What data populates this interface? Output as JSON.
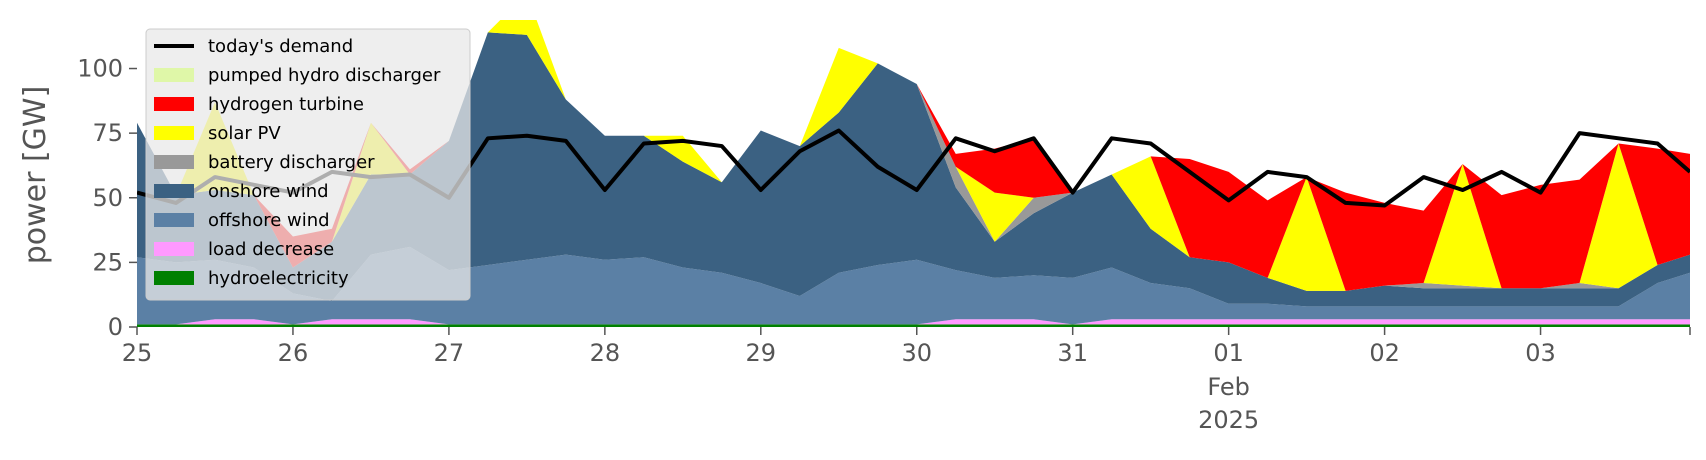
{
  "chart_data": {
    "type": "area",
    "title": "",
    "xlabel": "",
    "ylabel": "power [GW]",
    "ylim": [
      0,
      118
    ],
    "yticks": [
      0,
      25,
      50,
      75,
      100
    ],
    "xlim": [
      "2025-01-25T00:00",
      "2025-02-03T23:00"
    ],
    "x_ticks": [
      {
        "date": "2025-01-25",
        "label": "25"
      },
      {
        "date": "2025-01-26",
        "label": "26"
      },
      {
        "date": "2025-01-27",
        "label": "27"
      },
      {
        "date": "2025-01-28",
        "label": "28"
      },
      {
        "date": "2025-01-29",
        "label": "29"
      },
      {
        "date": "2025-01-30",
        "label": "30"
      },
      {
        "date": "2025-01-31",
        "label": "31"
      },
      {
        "date": "2025-02-01",
        "label": "01",
        "sublabels": [
          "Feb",
          "2025"
        ]
      },
      {
        "date": "2025-02-02",
        "label": "02"
      },
      {
        "date": "2025-02-03",
        "label": "03"
      }
    ],
    "grid": false,
    "legend_position": "top-left",
    "x": [
      "2025-01-25T00:00",
      "2025-01-25T06:00",
      "2025-01-25T12:00",
      "2025-01-25T18:00",
      "2025-01-26T00:00",
      "2025-01-26T06:00",
      "2025-01-26T12:00",
      "2025-01-26T18:00",
      "2025-01-27T00:00",
      "2025-01-27T06:00",
      "2025-01-27T12:00",
      "2025-01-27T18:00",
      "2025-01-28T00:00",
      "2025-01-28T06:00",
      "2025-01-28T12:00",
      "2025-01-28T18:00",
      "2025-01-29T00:00",
      "2025-01-29T06:00",
      "2025-01-29T12:00",
      "2025-01-29T18:00",
      "2025-01-30T00:00",
      "2025-01-30T06:00",
      "2025-01-30T12:00",
      "2025-01-30T18:00",
      "2025-01-31T00:00",
      "2025-01-31T06:00",
      "2025-01-31T12:00",
      "2025-01-31T18:00",
      "2025-02-01T00:00",
      "2025-02-01T06:00",
      "2025-02-01T12:00",
      "2025-02-01T18:00",
      "2025-02-02T00:00",
      "2025-02-02T06:00",
      "2025-02-02T12:00",
      "2025-02-02T18:00",
      "2025-02-03T00:00",
      "2025-02-03T06:00",
      "2025-02-03T12:00",
      "2025-02-03T18:00",
      "2025-02-03T23:00"
    ],
    "series": [
      {
        "name": "hydroelectricity",
        "color": "#008000",
        "kind": "area",
        "values": [
          1,
          1,
          1,
          1,
          1,
          1,
          1,
          1,
          1,
          1,
          1,
          1,
          1,
          1,
          1,
          1,
          1,
          1,
          1,
          1,
          1,
          1,
          1,
          1,
          1,
          1,
          1,
          1,
          1,
          1,
          1,
          1,
          1,
          1,
          1,
          1,
          1,
          1,
          1,
          1,
          1
        ]
      },
      {
        "name": "load decrease",
        "color": "#ff99ff",
        "kind": "area",
        "values": [
          0,
          0,
          2,
          2,
          0,
          2,
          2,
          2,
          0,
          0,
          0,
          0,
          0,
          0,
          0,
          0,
          0,
          0,
          0,
          0,
          0,
          2,
          2,
          2,
          0,
          2,
          2,
          2,
          2,
          2,
          2,
          2,
          2,
          2,
          2,
          2,
          2,
          2,
          2,
          2,
          2
        ]
      },
      {
        "name": "offshore wind",
        "color": "#5b80a5",
        "kind": "area",
        "values": [
          26,
          24,
          23,
          20,
          12,
          7,
          25,
          28,
          21,
          23,
          25,
          27,
          25,
          26,
          22,
          20,
          16,
          11,
          20,
          23,
          25,
          19,
          16,
          17,
          18,
          20,
          14,
          12,
          6,
          6,
          5,
          5,
          5,
          5,
          5,
          5,
          5,
          5,
          5,
          14,
          18
        ]
      },
      {
        "name": "onshore wind",
        "color": "#3b6182",
        "kind": "area",
        "values": [
          52,
          26,
          27,
          28,
          10,
          23,
          31,
          28,
          50,
          90,
          87,
          60,
          48,
          47,
          41,
          35,
          59,
          58,
          62,
          78,
          68,
          32,
          14,
          24,
          33,
          36,
          21,
          12,
          16,
          10,
          6,
          6,
          8,
          7,
          7,
          7,
          7,
          7,
          7,
          7,
          7
        ]
      },
      {
        "name": "battery discharger",
        "color": "#999999",
        "kind": "area",
        "values": [
          0,
          0,
          0,
          0,
          0,
          0,
          0,
          0,
          0,
          0,
          0,
          0,
          0,
          0,
          0,
          0,
          0,
          0,
          0,
          0,
          0,
          8,
          0,
          6,
          0,
          0,
          0,
          0,
          0,
          0,
          0,
          0,
          0,
          2,
          1,
          0,
          0,
          2,
          0,
          0,
          0
        ]
      },
      {
        "name": "solar PV",
        "color": "#ffff00",
        "kind": "area",
        "values": [
          0,
          0,
          34,
          0,
          0,
          0,
          20,
          0,
          0,
          0,
          16,
          0,
          0,
          0,
          10,
          0,
          0,
          0,
          25,
          0,
          0,
          0,
          19,
          0,
          0,
          0,
          28,
          0,
          0,
          0,
          44,
          0,
          0,
          0,
          47,
          0,
          0,
          0,
          56,
          0,
          0
        ]
      },
      {
        "name": "hydrogen turbine",
        "color": "#ff0000",
        "kind": "area",
        "values": [
          0,
          0,
          0,
          0,
          12,
          5,
          0,
          2,
          0,
          0,
          0,
          0,
          0,
          0,
          0,
          0,
          0,
          0,
          0,
          0,
          0,
          5,
          17,
          23,
          0,
          0,
          0,
          38,
          35,
          30,
          0,
          38,
          32,
          28,
          0,
          36,
          40,
          40,
          0,
          45,
          39
        ]
      },
      {
        "name": "pumped hydro discharger",
        "color": "#dff7a8",
        "kind": "area",
        "values": [
          0,
          0,
          0,
          0,
          0,
          0,
          0,
          0,
          0,
          0,
          0,
          0,
          0,
          0,
          0,
          0,
          0,
          0,
          0,
          0,
          0,
          0,
          0,
          0,
          0,
          0,
          0,
          0,
          0,
          0,
          0,
          0,
          0,
          0,
          0,
          0,
          0,
          0,
          0,
          0,
          0
        ]
      },
      {
        "name": "today's demand",
        "color": "#000000",
        "kind": "line",
        "values": [
          52,
          48,
          58,
          55,
          52,
          60,
          58,
          59,
          50,
          73,
          74,
          72,
          53,
          71,
          72,
          70,
          53,
          68,
          76,
          62,
          53,
          73,
          68,
          73,
          52,
          73,
          71,
          60,
          49,
          60,
          58,
          48,
          47,
          58,
          53,
          60,
          52,
          75,
          73,
          71,
          60
        ]
      }
    ]
  }
}
